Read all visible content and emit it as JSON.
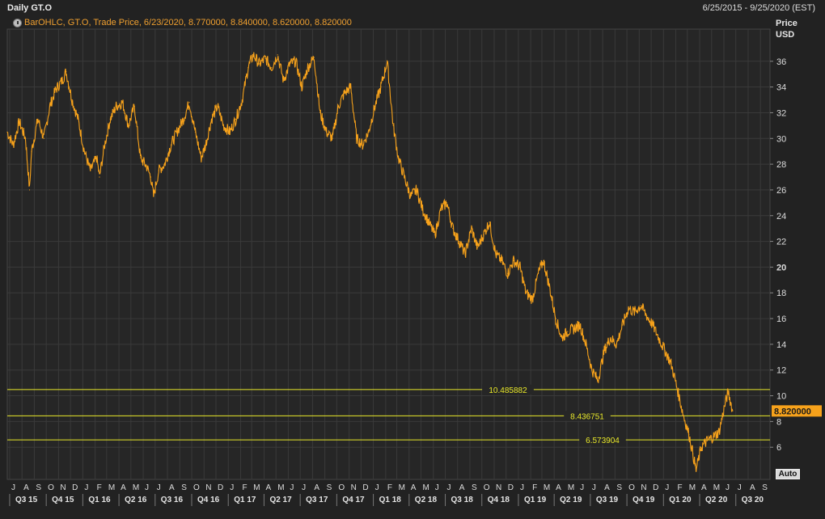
{
  "header": {
    "title": "Daily GT.O",
    "date_range": "6/25/2015 - 9/25/2020 (EST)",
    "legend": "BarOHLC, GT.O, Trade Price, 6/23/2020, 8.770000, 8.840000, 8.620000, 8.820000",
    "legend_icon": "clock-icon"
  },
  "axis": {
    "price_label": "Price",
    "currency_label": "USD",
    "auto_button": "Auto"
  },
  "colors": {
    "background": "#222222",
    "grid": "#3a3a3a",
    "series": "#f7a21b",
    "level_lines": "#e8e82a",
    "last_price_badge": "#f7a21b"
  },
  "chart_data": {
    "type": "line",
    "title": "Daily GT.O",
    "ylabel": "Price USD",
    "ylim": [
      3.5,
      38.5
    ],
    "grid": true,
    "y_ticks": [
      6,
      8,
      10,
      12,
      14,
      16,
      18,
      20,
      22,
      24,
      26,
      28,
      30,
      32,
      34,
      36
    ],
    "month_labels": [
      "J",
      "A",
      "S",
      "O",
      "N",
      "D",
      "J",
      "F",
      "M",
      "A",
      "M",
      "J",
      "J",
      "A",
      "S",
      "O",
      "N",
      "D",
      "J",
      "F",
      "M",
      "A",
      "M",
      "J",
      "J",
      "A",
      "S",
      "O",
      "N",
      "D",
      "J",
      "F",
      "M",
      "A",
      "M",
      "J",
      "J",
      "A",
      "S",
      "O",
      "N",
      "D",
      "J",
      "F",
      "M",
      "A",
      "M",
      "J",
      "J",
      "A",
      "S",
      "O",
      "N",
      "D",
      "J",
      "F",
      "M",
      "A",
      "M",
      "J",
      "J",
      "A",
      "S"
    ],
    "quarter_labels": [
      "Q3 15",
      "Q4 15",
      "Q1 16",
      "Q2 16",
      "Q3 16",
      "Q4 16",
      "Q1 17",
      "Q2 17",
      "Q3 17",
      "Q4 17",
      "Q1 18",
      "Q2 18",
      "Q3 18",
      "Q4 18",
      "Q1 19",
      "Q2 19",
      "Q3 19",
      "Q4 19",
      "Q1 20",
      "Q2 20",
      "Q3 20"
    ],
    "level_lines": [
      {
        "value": 10.485882,
        "label": "10.485882"
      },
      {
        "value": 8.436751,
        "label": "8.436751"
      },
      {
        "value": 6.573904,
        "label": "6.573904"
      }
    ],
    "last_price": {
      "value": 8.82,
      "label": "8.820000"
    },
    "series": [
      {
        "x": [
          "2015-06-25",
          "2015-07-10",
          "2015-07-25",
          "2015-08-10",
          "2015-08-20",
          "2015-08-25",
          "2015-09-10",
          "2015-09-25",
          "2015-10-10",
          "2015-10-25",
          "2015-11-10",
          "2015-11-20",
          "2015-12-05",
          "2015-12-20",
          "2016-01-05",
          "2016-01-20",
          "2016-02-05",
          "2016-02-12",
          "2016-02-25",
          "2016-03-10",
          "2016-03-25",
          "2016-04-10",
          "2016-04-25",
          "2016-05-10",
          "2016-05-25",
          "2016-06-10",
          "2016-06-20",
          "2016-06-27",
          "2016-07-10",
          "2016-07-25",
          "2016-08-10",
          "2016-08-25",
          "2016-09-10",
          "2016-09-25",
          "2016-10-10",
          "2016-10-25",
          "2016-11-05",
          "2016-11-20",
          "2016-12-05",
          "2016-12-20",
          "2017-01-05",
          "2017-01-20",
          "2017-02-05",
          "2017-02-20",
          "2017-03-05",
          "2017-03-20",
          "2017-04-05",
          "2017-04-20",
          "2017-05-05",
          "2017-05-20",
          "2017-06-05",
          "2017-06-20",
          "2017-07-05",
          "2017-07-20",
          "2017-08-05",
          "2017-08-20",
          "2017-09-05",
          "2017-09-20",
          "2017-10-05",
          "2017-10-20",
          "2017-11-05",
          "2017-11-20",
          "2017-12-05",
          "2017-12-20",
          "2018-01-05",
          "2018-01-20",
          "2018-02-05",
          "2018-02-20",
          "2018-03-05",
          "2018-03-20",
          "2018-04-05",
          "2018-04-20",
          "2018-05-05",
          "2018-05-20",
          "2018-06-05",
          "2018-06-20",
          "2018-07-05",
          "2018-07-20",
          "2018-08-05",
          "2018-08-20",
          "2018-09-05",
          "2018-09-20",
          "2018-10-05",
          "2018-10-20",
          "2018-11-05",
          "2018-11-20",
          "2018-12-05",
          "2018-12-20",
          "2019-01-05",
          "2019-01-20",
          "2019-02-05",
          "2019-02-20",
          "2019-03-05",
          "2019-03-20",
          "2019-04-05",
          "2019-04-20",
          "2019-05-05",
          "2019-05-20",
          "2019-06-05",
          "2019-06-20",
          "2019-07-05",
          "2019-07-20",
          "2019-08-05",
          "2019-08-20",
          "2019-09-05",
          "2019-09-20",
          "2019-10-05",
          "2019-10-20",
          "2019-11-05",
          "2019-11-20",
          "2019-12-05",
          "2019-12-20",
          "2020-01-05",
          "2020-01-20",
          "2020-02-05",
          "2020-02-20",
          "2020-03-05",
          "2020-03-15",
          "2020-03-23",
          "2020-04-05",
          "2020-04-20",
          "2020-05-05",
          "2020-05-20",
          "2020-06-05",
          "2020-06-12",
          "2020-06-23"
        ],
        "values": [
          30.5,
          29.5,
          31.3,
          30.0,
          26.0,
          29.0,
          31.5,
          30.0,
          32.5,
          33.8,
          34.5,
          35.2,
          33.0,
          31.5,
          29.0,
          27.5,
          28.5,
          27.0,
          29.5,
          31.5,
          32.5,
          32.8,
          31.0,
          32.5,
          28.5,
          27.8,
          27.0,
          25.5,
          27.5,
          28.0,
          29.5,
          30.5,
          31.5,
          32.8,
          30.5,
          28.5,
          29.5,
          31.5,
          32.5,
          31.0,
          30.5,
          31.5,
          33.0,
          35.5,
          36.5,
          35.8,
          36.2,
          35.5,
          36.5,
          34.5,
          35.8,
          36.0,
          34.0,
          35.5,
          36.3,
          32.0,
          30.5,
          30.0,
          32.5,
          33.5,
          34.0,
          30.0,
          29.5,
          30.5,
          32.5,
          34.0,
          36.0,
          31.0,
          28.5,
          27.0,
          25.5,
          26.0,
          24.5,
          23.5,
          22.5,
          24.5,
          25.0,
          23.0,
          22.0,
          21.0,
          23.0,
          21.5,
          22.5,
          23.5,
          21.0,
          20.5,
          19.5,
          20.5,
          20.0,
          18.0,
          17.5,
          19.5,
          20.5,
          18.5,
          16.0,
          14.5,
          15.0,
          15.2,
          15.5,
          14.0,
          12.0,
          11.2,
          13.5,
          14.5,
          14.0,
          15.5,
          16.8,
          16.5,
          17.0,
          16.2,
          15.5,
          14.5,
          13.5,
          12.5,
          10.5,
          8.5,
          7.0,
          5.5,
          4.2,
          6.0,
          6.5,
          6.8,
          7.2,
          9.5,
          10.3,
          8.82
        ]
      }
    ]
  }
}
